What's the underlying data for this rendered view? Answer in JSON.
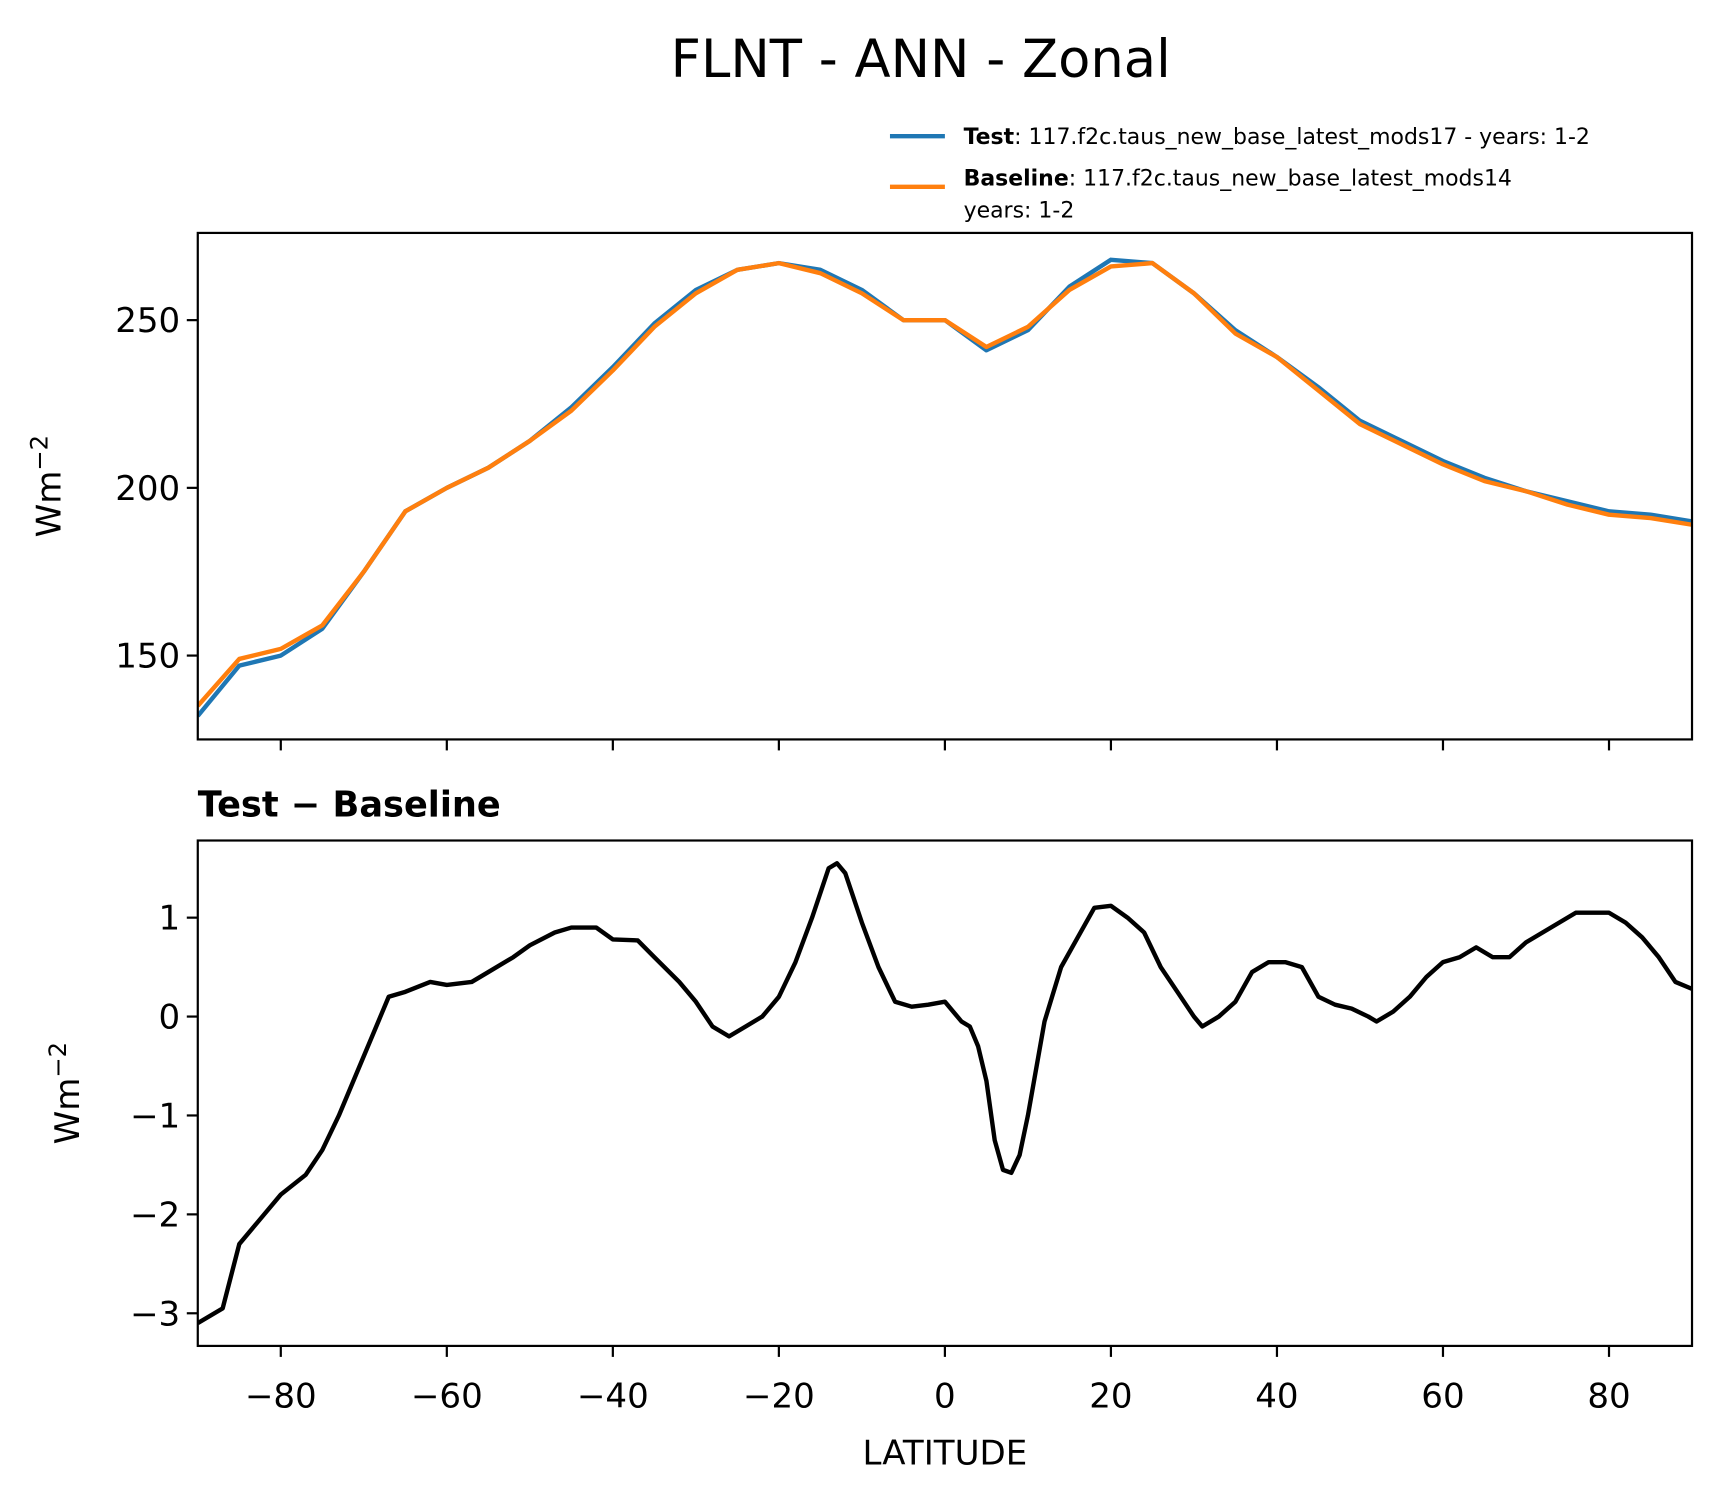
{
  "title": "FLNT - ANN - Zonal",
  "chart_data": [
    {
      "type": "line",
      "ylabel": "Wm",
      "ylabel_exponent": "−2",
      "x": [
        -90,
        -85,
        -80,
        -75,
        -70,
        -65,
        -60,
        -55,
        -50,
        -45,
        -40,
        -35,
        -30,
        -25,
        -20,
        -15,
        -10,
        -5,
        0,
        5,
        10,
        15,
        20,
        25,
        30,
        35,
        40,
        45,
        50,
        55,
        60,
        65,
        70,
        75,
        80,
        85,
        90
      ],
      "series": [
        {
          "name": "Test",
          "detail": [
            ": 117.f2c.taus_new_base_latest_mods17 - years: 1-2"
          ],
          "color": "#1f77b4",
          "values": [
            132,
            147,
            150,
            158,
            175,
            193,
            200,
            206,
            214,
            224,
            236,
            249,
            259,
            265,
            267,
            265,
            259,
            250,
            250,
            241,
            247,
            260,
            268,
            267,
            258,
            247,
            239,
            230,
            220,
            214,
            208,
            203,
            199,
            196,
            193,
            192,
            190
          ]
        },
        {
          "name": "Baseline",
          "detail": [
            ": 117.f2c.taus_new_base_latest_mods14",
            "years: 1-2"
          ],
          "color": "#ff7f0e",
          "values": [
            135,
            149,
            152,
            159,
            175,
            193,
            200,
            206,
            214,
            223,
            235,
            248,
            258,
            265,
            267,
            264,
            258,
            250,
            250,
            242,
            248,
            259,
            266,
            267,
            258,
            246,
            239,
            229,
            219,
            213,
            207,
            202,
            199,
            195,
            192,
            191,
            189
          ]
        }
      ],
      "xlim": [
        -90,
        90
      ],
      "xticks": [
        -80,
        -60,
        -40,
        -20,
        0,
        20,
        40,
        60,
        80
      ],
      "ylim": [
        125,
        276
      ],
      "yticks": [
        150,
        200,
        250
      ]
    },
    {
      "type": "line",
      "title": "Test − Baseline",
      "xlabel": "LATITUDE",
      "ylabel": "Wm",
      "ylabel_exponent": "−2",
      "x": [
        -90,
        -87,
        -85,
        -82,
        -80,
        -77,
        -75,
        -73,
        -71,
        -69,
        -67,
        -65,
        -62,
        -60,
        -57,
        -55,
        -52,
        -50,
        -47,
        -45,
        -42,
        -40,
        -37,
        -35,
        -32,
        -30,
        -28,
        -26,
        -24,
        -22,
        -20,
        -18,
        -16,
        -14,
        -13,
        -12,
        -10,
        -8,
        -6,
        -4,
        -2,
        0,
        2,
        3,
        4,
        5,
        6,
        7,
        8,
        9,
        10,
        12,
        14,
        16,
        18,
        20,
        22,
        24,
        26,
        28,
        30,
        31,
        33,
        35,
        37,
        39,
        41,
        43,
        45,
        47,
        49,
        51,
        52,
        54,
        56,
        58,
        60,
        62,
        64,
        66,
        68,
        70,
        72,
        74,
        76,
        78,
        80,
        82,
        84,
        86,
        88,
        90
      ],
      "series": [
        {
          "name": "Test − Baseline",
          "color": "#000000",
          "values": [
            -3.1,
            -2.95,
            -2.3,
            -2.0,
            -1.8,
            -1.6,
            -1.35,
            -1.0,
            -0.6,
            -0.2,
            0.2,
            0.25,
            0.35,
            0.32,
            0.35,
            0.45,
            0.6,
            0.72,
            0.85,
            0.9,
            0.9,
            0.78,
            0.77,
            0.6,
            0.35,
            0.15,
            -0.1,
            -0.2,
            -0.1,
            0.0,
            0.2,
            0.55,
            1.0,
            1.5,
            1.55,
            1.45,
            0.95,
            0.5,
            0.15,
            0.1,
            0.12,
            0.15,
            -0.05,
            -0.1,
            -0.3,
            -0.65,
            -1.25,
            -1.55,
            -1.58,
            -1.4,
            -1.0,
            -0.05,
            0.5,
            0.8,
            1.1,
            1.12,
            1.0,
            0.85,
            0.5,
            0.25,
            0.0,
            -0.1,
            0.0,
            0.15,
            0.45,
            0.55,
            0.55,
            0.5,
            0.2,
            0.12,
            0.08,
            0.0,
            -0.05,
            0.05,
            0.2,
            0.4,
            0.55,
            0.6,
            0.7,
            0.6,
            0.6,
            0.75,
            0.85,
            0.95,
            1.05,
            1.05,
            1.05,
            0.95,
            0.8,
            0.6,
            0.35,
            0.28
          ]
        }
      ],
      "xlim": [
        -90,
        90
      ],
      "xticks": [
        {
          "value": -80,
          "label": "−80"
        },
        {
          "value": -60,
          "label": "−60"
        },
        {
          "value": -40,
          "label": "−40"
        },
        {
          "value": -20,
          "label": "−20"
        },
        0,
        20,
        40,
        60,
        80
      ],
      "ylim": [
        -3.33,
        1.78
      ],
      "yticks": [
        {
          "value": -3,
          "label": "−3"
        },
        {
          "value": -2,
          "label": "−2"
        },
        {
          "value": -1,
          "label": "−1"
        },
        0,
        1
      ]
    }
  ]
}
